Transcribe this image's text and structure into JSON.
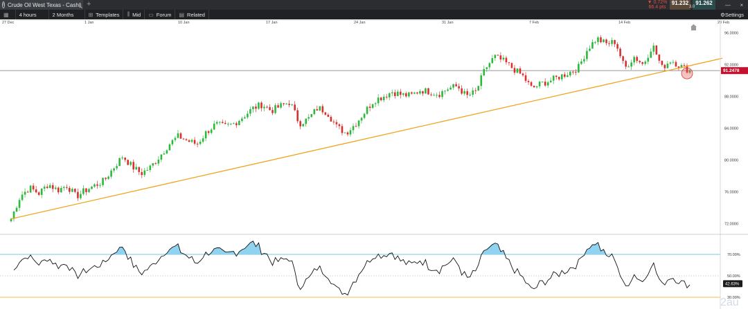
{
  "window": {
    "tab_title": "Crude Oil West Texas - Cash",
    "tab_icon": "instrument-icon",
    "new_tab": "+"
  },
  "quote": {
    "change_pct": "▼ 0.72%",
    "change_pts": "66.4 pts",
    "bid": "91.232",
    "spread": "3.0",
    "ask": "91.262"
  },
  "toolbar": {
    "interval": "4 hours",
    "range": "2 Months",
    "templates": "Templates",
    "mid": "Mid",
    "forum": "Forum",
    "related": "Related",
    "settings": "Settings"
  },
  "colors": {
    "up": "#2db83d",
    "down": "#d9302e",
    "trendline": "#f0a41e",
    "price_tag": "#c8102e",
    "rsi_fill": "#8fd3f0",
    "rsi_band": "#4ab6dd"
  },
  "chart_data": {
    "type": "candlestick",
    "x_ticks": [
      "27 Dec",
      "1 Jan",
      "10 Jan",
      "17 Jan",
      "24 Jan",
      "31 Jan",
      "7 Feb",
      "14 Feb",
      "20 Feb"
    ],
    "y_ticks": [
      "96.0000",
      "92.0000",
      "88.0000",
      "84.0000",
      "80.0000",
      "76.0000",
      "72.0000"
    ],
    "ylim": [
      71,
      97
    ],
    "current_price": "91.2478",
    "close_path": [
      72.6,
      75.5,
      76.5,
      75.8,
      77.0,
      76.2,
      76.8,
      75.4,
      76.2,
      76.8,
      77.4,
      79.0,
      80.5,
      79.2,
      78.3,
      79.1,
      80.5,
      82.0,
      83.0,
      82.4,
      82.0,
      83.5,
      84.5,
      84.2,
      84.6,
      85.5,
      86.5,
      87.0,
      86.2,
      86.8,
      87.3,
      84.6,
      85.2,
      86.6,
      86.0,
      84.2,
      83.4,
      84.5,
      86.0,
      87.5,
      88.0,
      88.6,
      88.2,
      88.1,
      88.8,
      88.6,
      88.3,
      89.0,
      89.3,
      88.0,
      88.6,
      91.5,
      93.0,
      92.4,
      91.5,
      90.6,
      89.0,
      89.6,
      90.0,
      90.5,
      91.0,
      91.6,
      94.0,
      95.3,
      94.6,
      94.9,
      91.5,
      93.0,
      92.0,
      94.5,
      91.6,
      92.6,
      91.8,
      91.25
    ],
    "trendline": {
      "from": [
        "27 Dec",
        72.6
      ],
      "to": [
        "20 Feb",
        92.8
      ]
    },
    "indicator": {
      "name": "RSI",
      "levels": [
        "70.00%",
        "50.00%",
        "30.00%"
      ],
      "current": "42.63%"
    }
  },
  "watermark": "2au"
}
